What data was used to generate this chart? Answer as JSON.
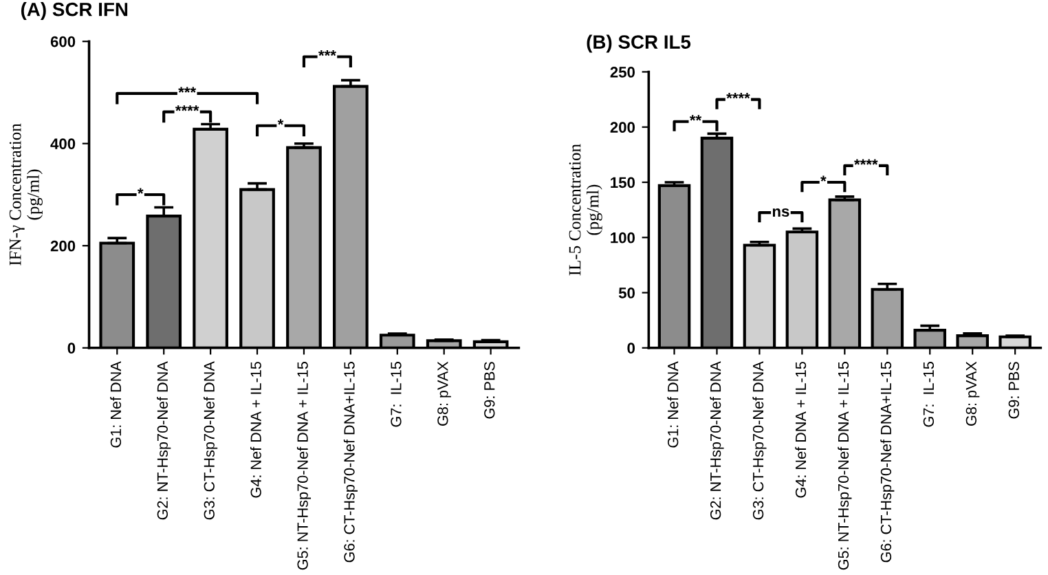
{
  "chart_data": [
    {
      "type": "bar",
      "title": "(A) SCR IFN",
      "ylabel": "IFN-γ Concentration\n(pg/ml)",
      "categories": [
        "G1: Nef DNA",
        "G2: NT-Hsp70-Nef DNA",
        "G3: CT-Hsp70-Nef DNA",
        "G4: Nef DNA + IL-15",
        "G5: NT-Hsp70-Nef DNA + IL-15",
        "G6: CT-Hsp70-Nef DNA+IL-15",
        "G7:  IL-15",
        "G8: pVAX",
        "G9: PBS"
      ],
      "values": [
        205,
        258,
        428,
        310,
        392,
        512,
        25,
        14,
        12
      ],
      "errors": [
        10,
        17,
        10,
        12,
        8,
        12,
        3,
        2,
        3
      ],
      "colors": [
        "#8c8c8c",
        "#6e6e6e",
        "#d0d0d0",
        "#c8c8c8",
        "#a8a8a8",
        "#a0a0a0",
        "#9a9a9a",
        "#a8a8a8",
        "#d8d8d8"
      ],
      "ylim": [
        0,
        600
      ],
      "yticks": [
        0,
        200,
        400,
        600
      ],
      "grid": false,
      "legend": false,
      "annotations": [
        "*",
        "***",
        "****",
        "*",
        "***"
      ]
    },
    {
      "type": "bar",
      "title": "(B) SCR IL5",
      "ylabel": "IL-5 Concentration\n(pg/ml)",
      "categories": [
        "G1: Nef DNA",
        "G2: NT-Hsp70-Nef DNA",
        "G3: CT-Hsp70-Nef DNA",
        "G4: Nef DNA + IL-15",
        "G5: NT-Hsp70-Nef DNA + IL-15",
        "G6: CT-Hsp70-Nef DNA+IL-15",
        "G7:  IL-15",
        "G8: pVAX",
        "G9: PBS"
      ],
      "values": [
        147,
        190,
        93,
        105,
        134,
        53,
        16,
        11,
        10
      ],
      "errors": [
        3,
        4,
        3,
        3,
        3,
        5,
        4,
        2,
        1
      ],
      "colors": [
        "#8c8c8c",
        "#6e6e6e",
        "#d0d0d0",
        "#c8c8c8",
        "#a8a8a8",
        "#a0a0a0",
        "#9a9a9a",
        "#a8a8a8",
        "#d8d8d8"
      ],
      "ylim": [
        0,
        250
      ],
      "yticks": [
        0,
        50,
        100,
        150,
        200,
        250
      ],
      "grid": false,
      "legend": false,
      "annotations": [
        "**",
        "****",
        "ns",
        "*",
        "****"
      ]
    }
  ]
}
